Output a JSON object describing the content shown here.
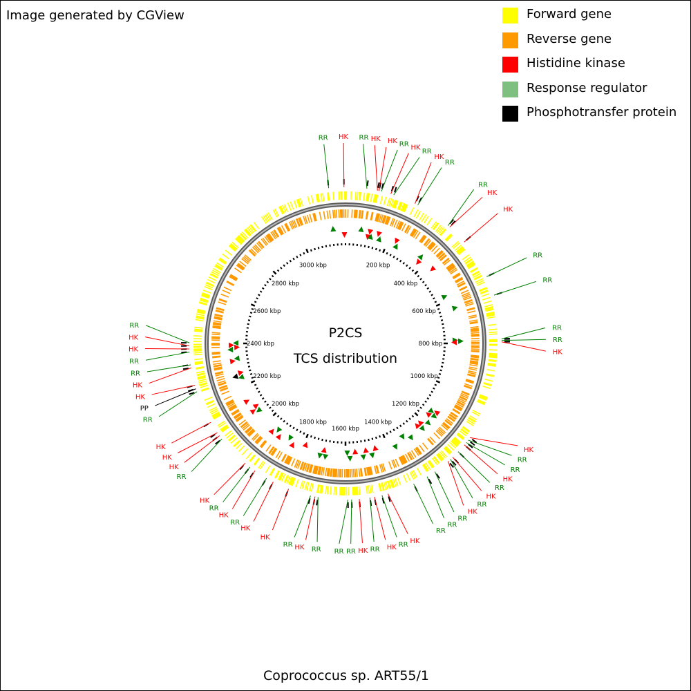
{
  "credit": "Image generated by CGView",
  "title_line1": "P2CS",
  "title_line2": "TCS distribution",
  "organism": "Coprococcus sp. ART55/1",
  "colors": {
    "forward": "#ffff00",
    "reverse": "#ff9900",
    "hk": "#ff0000",
    "rr": "#008000",
    "pp": "#000000",
    "backbone": "#808080"
  },
  "legend": [
    {
      "label": "Forward gene",
      "color": "#ffff00"
    },
    {
      "label": "Reverse gene",
      "color": "#ff9900"
    },
    {
      "label": "Histidine kinase",
      "color": "#ff0000"
    },
    {
      "label": "Response regulator",
      "color": "#7fbf7f"
    },
    {
      "label": "Phosphotransfer protein",
      "color": "#000000"
    }
  ],
  "genome_length_kbp": 3200,
  "ruler_labels": [
    {
      "kbp": 200,
      "text": "200 kbp"
    },
    {
      "kbp": 400,
      "text": "400 kbp"
    },
    {
      "kbp": 600,
      "text": "600 kbp"
    },
    {
      "kbp": 800,
      "text": "800 kbp"
    },
    {
      "kbp": 1000,
      "text": "1000 kbp"
    },
    {
      "kbp": 1200,
      "text": "1200 kbp"
    },
    {
      "kbp": 1400,
      "text": "1400 kbp"
    },
    {
      "kbp": 1600,
      "text": "1600 kbp"
    },
    {
      "kbp": 1800,
      "text": "1800 kbp"
    },
    {
      "kbp": 2000,
      "text": "2000 kbp"
    },
    {
      "kbp": 2200,
      "text": "2200 kbp"
    },
    {
      "kbp": 2400,
      "text": "2400 kbp"
    },
    {
      "kbp": 2600,
      "text": "2600 kbp"
    },
    {
      "kbp": 2800,
      "text": "2800 kbp"
    },
    {
      "kbp": 3000,
      "text": "3000 kbp"
    }
  ],
  "features": [
    {
      "kbp": 3145,
      "type": "RR",
      "label": "RR"
    },
    {
      "kbp": 3195,
      "type": "HK",
      "label": "HK"
    },
    {
      "kbp": 70,
      "type": "RR",
      "label": "RR"
    },
    {
      "kbp": 105,
      "type": "HK",
      "label": "HK"
    },
    {
      "kbp": 110,
      "type": "HK",
      "label": "HK"
    },
    {
      "kbp": 118,
      "type": "RR",
      "label": "RR"
    },
    {
      "kbp": 150,
      "type": "HK",
      "label": "HK"
    },
    {
      "kbp": 160,
      "type": "RR",
      "label": "RR"
    },
    {
      "kbp": 235,
      "type": "HK",
      "label": "HK"
    },
    {
      "kbp": 245,
      "type": "RR",
      "label": "RR"
    },
    {
      "kbp": 365,
      "type": "RR",
      "label": "RR"
    },
    {
      "kbp": 372,
      "type": "HK",
      "label": "HK"
    },
    {
      "kbp": 440,
      "type": "HK",
      "label": "HK"
    },
    {
      "kbp": 575,
      "type": "RR",
      "label": "RR"
    },
    {
      "kbp": 640,
      "type": "RR",
      "label": "RR"
    },
    {
      "kbp": 785,
      "type": "RR",
      "label": "RR"
    },
    {
      "kbp": 790,
      "type": "RR",
      "label": "RR"
    },
    {
      "kbp": 795,
      "type": "HK",
      "label": "HK"
    },
    {
      "kbp": 1130,
      "type": "HK",
      "label": "HK"
    },
    {
      "kbp": 1140,
      "type": "RR",
      "label": "RR"
    },
    {
      "kbp": 1150,
      "type": "RR",
      "label": "RR"
    },
    {
      "kbp": 1160,
      "type": "HK",
      "label": "HK"
    },
    {
      "kbp": 1190,
      "type": "RR",
      "label": "RR"
    },
    {
      "kbp": 1215,
      "type": "HK",
      "label": "HK"
    },
    {
      "kbp": 1225,
      "type": "RR",
      "label": "RR"
    },
    {
      "kbp": 1235,
      "type": "HK",
      "label": "HK"
    },
    {
      "kbp": 1290,
      "type": "RR",
      "label": "RR"
    },
    {
      "kbp": 1320,
      "type": "RR",
      "label": "RR"
    },
    {
      "kbp": 1370,
      "type": "RR",
      "label": "RR"
    },
    {
      "kbp": 1460,
      "type": "HK",
      "label": "HK"
    },
    {
      "kbp": 1480,
      "type": "RR",
      "label": "RR"
    },
    {
      "kbp": 1505,
      "type": "HK",
      "label": "HK"
    },
    {
      "kbp": 1520,
      "type": "RR",
      "label": "RR"
    },
    {
      "kbp": 1555,
      "type": "HK",
      "label": "HK"
    },
    {
      "kbp": 1580,
      "type": "RR",
      "label": "RR"
    },
    {
      "kbp": 1592,
      "type": "RR",
      "label": "RR"
    },
    {
      "kbp": 1690,
      "type": "RR",
      "label": "RR"
    },
    {
      "kbp": 1700,
      "type": "HK",
      "label": "HK"
    },
    {
      "kbp": 1715,
      "type": "RR",
      "label": "RR"
    },
    {
      "kbp": 1790,
      "type": "HK",
      "label": "HK"
    },
    {
      "kbp": 1845,
      "type": "HK",
      "label": "HK"
    },
    {
      "kbp": 1870,
      "type": "RR",
      "label": "RR"
    },
    {
      "kbp": 1915,
      "type": "HK",
      "label": "HK"
    },
    {
      "kbp": 1935,
      "type": "RR",
      "label": "RR"
    },
    {
      "kbp": 1955,
      "type": "HK",
      "label": "HK"
    },
    {
      "kbp": 2065,
      "type": "RR",
      "label": "RR"
    },
    {
      "kbp": 2078,
      "type": "HK",
      "label": "HK"
    },
    {
      "kbp": 2090,
      "type": "HK",
      "label": "HK"
    },
    {
      "kbp": 2130,
      "type": "HK",
      "label": "HK"
    },
    {
      "kbp": 2240,
      "type": "RR",
      "label": "RR"
    },
    {
      "kbp": 2250,
      "type": "PP",
      "label": "PP"
    },
    {
      "kbp": 2262,
      "type": "HK",
      "label": "HK"
    },
    {
      "kbp": 2320,
      "type": "HK",
      "label": "HK"
    },
    {
      "kbp": 2330,
      "type": "RR",
      "label": "RR"
    },
    {
      "kbp": 2372,
      "type": "RR",
      "label": "RR"
    },
    {
      "kbp": 2382,
      "type": "HK",
      "label": "HK"
    },
    {
      "kbp": 2392,
      "type": "HK",
      "label": "HK"
    },
    {
      "kbp": 2402,
      "type": "RR",
      "label": "RR"
    }
  ]
}
